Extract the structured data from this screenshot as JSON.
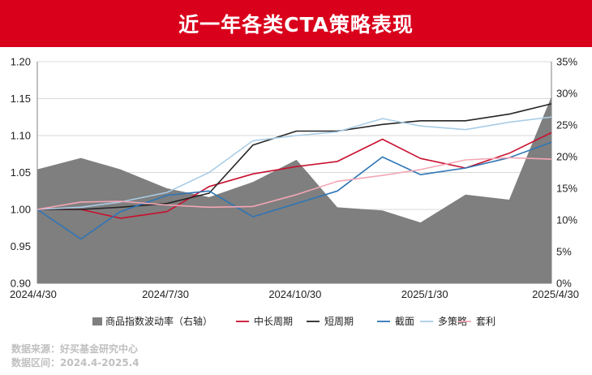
{
  "header": {
    "title": "近一年各类CTA策略表现"
  },
  "footer": {
    "source": "数据来源：好买基金研究中心",
    "range": "数据区间：2024.4-2025.4"
  },
  "chart_data": {
    "type": "line",
    "x": [
      "2024-04-30",
      "2024-05-31",
      "2024-06-28",
      "2024-07-31",
      "2024-08-30",
      "2024-09-30",
      "2024-10-31",
      "2024-11-29",
      "2024-12-31",
      "2025-01-27",
      "2025-02-28",
      "2025-03-31",
      "2025-04-30"
    ],
    "x_tick_labels": [
      "2024/4/30",
      "2024/7/30",
      "2024/10/30",
      "2025/1/30",
      "2025/4/30"
    ],
    "x_tick_positions": [
      "2024-04-30",
      "2024-07-30",
      "2024-10-30",
      "2025-01-30",
      "2025-04-30"
    ],
    "ylim": [
      0.9,
      1.2
    ],
    "y_ticks": [
      "0.90",
      "0.95",
      "1.00",
      "1.05",
      "1.10",
      "1.15",
      "1.20"
    ],
    "y2lim": [
      0,
      35
    ],
    "y2_ticks": [
      "0%",
      "5%",
      "10%",
      "15%",
      "20%",
      "25%",
      "30%",
      "35%"
    ],
    "grid": true,
    "legend_position": "bottom",
    "area_series": {
      "name": "商品指数波动率（右轴）",
      "color": "#7f7f7f",
      "x": [
        "2024-04-30",
        "2024-05-31",
        "2024-06-28",
        "2024-07-31",
        "2024-08-30",
        "2024-09-30",
        "2024-10-31",
        "2024-11-29",
        "2024-12-31",
        "2025-01-27",
        "2025-02-28",
        "2025-03-31",
        "2025-04-30"
      ],
      "values": [
        18.0,
        19.8,
        18.0,
        15.0,
        13.6,
        16.0,
        19.5,
        12.0,
        11.5,
        9.6,
        14.0,
        13.2,
        29.5
      ]
    },
    "series": [
      {
        "name": "中长周期",
        "color": "#c8102e",
        "values": [
          1.0,
          1.0,
          0.988,
          0.997,
          1.031,
          1.048,
          1.058,
          1.065,
          1.095,
          1.069,
          1.056,
          1.076,
          1.104
        ]
      },
      {
        "name": "短周期",
        "color": "#262626",
        "values": [
          1.0,
          1.0,
          1.003,
          1.008,
          1.022,
          1.087,
          1.106,
          1.106,
          1.115,
          1.12,
          1.12,
          1.129,
          1.143
        ]
      },
      {
        "name": "截面",
        "color": "#2e75b6",
        "values": [
          1.0,
          0.96,
          0.997,
          1.019,
          1.025,
          0.99,
          1.008,
          1.025,
          1.071,
          1.047,
          1.056,
          1.07,
          1.091
        ]
      },
      {
        "name": "多策略",
        "color": "#a9cde6",
        "values": [
          1.0,
          1.003,
          1.01,
          1.023,
          1.05,
          1.093,
          1.1,
          1.105,
          1.123,
          1.113,
          1.108,
          1.118,
          1.125
        ]
      },
      {
        "name": "套利",
        "color": "#f4a6b5",
        "values": [
          1.0,
          1.01,
          1.011,
          1.006,
          1.003,
          1.004,
          1.02,
          1.038,
          1.046,
          1.054,
          1.067,
          1.07,
          1.068
        ]
      }
    ]
  }
}
